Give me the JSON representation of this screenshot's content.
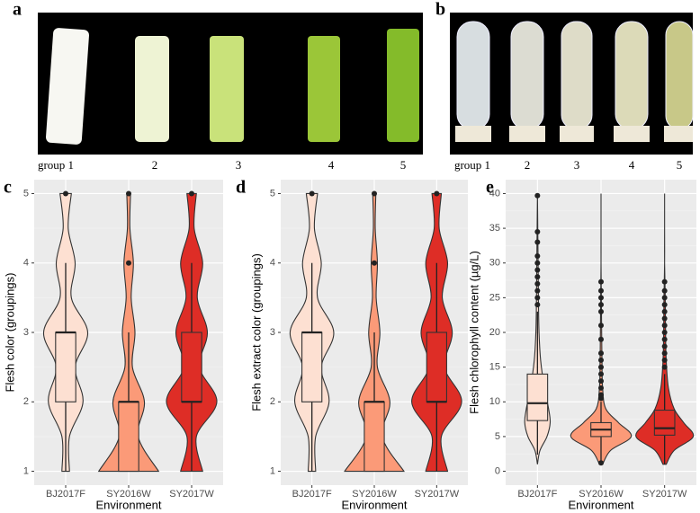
{
  "photo_panels": [
    {
      "letter": "a",
      "labels": [
        "group 1",
        "2",
        "3",
        "4",
        "5"
      ]
    },
    {
      "letter": "b",
      "labels": [
        "group 1",
        "2",
        "3",
        "4",
        "5"
      ]
    }
  ],
  "chart_data": [
    {
      "type": "violin",
      "letter": "c",
      "ylabel": "Flesh color (groupings)",
      "xlabel": "Environment",
      "categories": [
        "BJ2017F",
        "SY2016W",
        "SY2017W"
      ],
      "ylim": [
        0.8,
        5.2
      ],
      "yticks": [
        1,
        2,
        3,
        4,
        5
      ],
      "grid": true,
      "density_y": [
        1,
        1.5,
        2,
        2.5,
        3,
        3.5,
        4,
        4.5,
        5
      ],
      "boxes": [
        {
          "color": "#fde0d2",
          "q1": 2,
          "median": 3,
          "q3": 3,
          "whiskers": [
            1,
            4
          ],
          "outliers": [
            5
          ],
          "density": [
            0.12,
            0.12,
            0.55,
            0.3,
            0.7,
            0.18,
            0.3,
            0.08,
            0.18
          ]
        },
        {
          "color": "#fb9a78",
          "q1": 1,
          "median": 2,
          "q3": 2,
          "whiskers": [
            1,
            3
          ],
          "outliers": [
            4,
            5
          ],
          "density": [
            0.95,
            0.3,
            0.5,
            0.12,
            0.2,
            0.08,
            0.15,
            0.04,
            0.06
          ]
        },
        {
          "color": "#de2d26",
          "q1": 2,
          "median": 2,
          "q3": 3,
          "whiskers": [
            1,
            4
          ],
          "outliers": [
            5
          ],
          "density": [
            0.35,
            0.15,
            0.8,
            0.25,
            0.5,
            0.18,
            0.35,
            0.08,
            0.15
          ]
        }
      ]
    },
    {
      "type": "violin",
      "letter": "d",
      "ylabel": "Flesh extract color (groupings)",
      "xlabel": "Environment",
      "categories": [
        "BJ2017F",
        "SY2016W",
        "SY2017W"
      ],
      "ylim": [
        0.8,
        5.2
      ],
      "yticks": [
        1,
        2,
        3,
        4,
        5
      ],
      "grid": true,
      "density_y": [
        1,
        1.5,
        2,
        2.5,
        3,
        3.5,
        4,
        4.5,
        5
      ],
      "boxes": [
        {
          "color": "#fde0d2",
          "q1": 2,
          "median": 3,
          "q3": 3,
          "whiskers": [
            1,
            4
          ],
          "outliers": [
            5
          ],
          "density": [
            0.12,
            0.12,
            0.55,
            0.3,
            0.7,
            0.18,
            0.3,
            0.08,
            0.18
          ]
        },
        {
          "color": "#fb9a78",
          "q1": 1,
          "median": 2,
          "q3": 2,
          "whiskers": [
            1,
            3
          ],
          "outliers": [
            4,
            5
          ],
          "density": [
            0.95,
            0.25,
            0.5,
            0.1,
            0.18,
            0.06,
            0.1,
            0.03,
            0.05
          ]
        },
        {
          "color": "#de2d26",
          "q1": 2,
          "median": 2,
          "q3": 3,
          "whiskers": [
            1,
            4
          ],
          "outliers": [
            5
          ],
          "density": [
            0.35,
            0.15,
            0.8,
            0.25,
            0.5,
            0.18,
            0.35,
            0.08,
            0.15
          ]
        }
      ]
    },
    {
      "type": "violin",
      "letter": "e",
      "ylabel": "Flesh chlorophyll content (µg/L)",
      "xlabel": "Environment",
      "categories": [
        "BJ2017F",
        "SY2016W",
        "SY2017W"
      ],
      "ylim": [
        -2,
        42
      ],
      "yticks": [
        0,
        5,
        10,
        15,
        20,
        25,
        30,
        35,
        40
      ],
      "grid": true,
      "density_y": [
        1,
        3,
        5,
        7,
        9,
        12,
        16,
        20,
        25,
        30,
        35,
        40
      ],
      "boxes": [
        {
          "color": "#fde0d2",
          "q1": 7.3,
          "median": 9.8,
          "q3": 14,
          "whiskers": [
            2.4,
            23
          ],
          "outliers": [
            24,
            25,
            26,
            27,
            28,
            29,
            30,
            31,
            33,
            34.5,
            39.7
          ],
          "density": [
            0,
            0.08,
            0.3,
            0.4,
            0.35,
            0.22,
            0.1,
            0.05,
            0.03,
            0.02,
            0.01,
            0
          ],
          "density_start": 2.4
        },
        {
          "color": "#fb9a78",
          "q1": 5,
          "median": 6,
          "q3": 7,
          "whiskers": [
            1.5,
            10
          ],
          "outliers": [
            1.2,
            10.5,
            11,
            12,
            13,
            14,
            15,
            16,
            17,
            19,
            21,
            23,
            24,
            25,
            26,
            27.3
          ],
          "density": [
            0.05,
            0.3,
            0.95,
            0.55,
            0.15,
            0.05,
            0.03,
            0.02,
            0.01,
            0,
            0,
            0
          ]
        },
        {
          "color": "#de2d26",
          "q1": 5.2,
          "median": 6.2,
          "q3": 8.8,
          "whiskers": [
            1,
            14
          ],
          "outliers": [
            15,
            16,
            17,
            18,
            19,
            20,
            21,
            22,
            23,
            24,
            25,
            26,
            27.3
          ],
          "density": [
            0.05,
            0.3,
            0.9,
            0.6,
            0.3,
            0.12,
            0.05,
            0.03,
            0.02,
            0,
            0,
            0
          ]
        }
      ]
    }
  ]
}
